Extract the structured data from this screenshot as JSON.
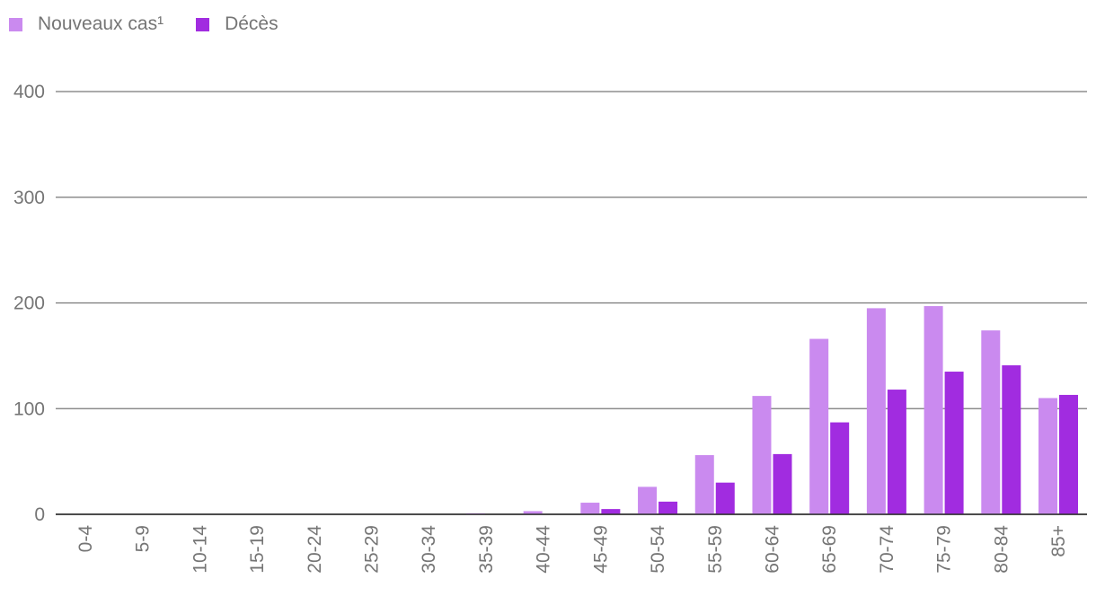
{
  "chart_data": {
    "type": "bar",
    "categories": [
      "0-4",
      "5-9",
      "10-14",
      "15-19",
      "20-24",
      "25-29",
      "30-34",
      "35-39",
      "40-44",
      "45-49",
      "50-54",
      "55-59",
      "60-64",
      "65-69",
      "70-74",
      "75-79",
      "80-84",
      "85+"
    ],
    "series": [
      {
        "name": "Nouveaux cas¹",
        "color": "#ca8aef",
        "values": [
          0,
          0,
          0,
          0,
          0,
          0,
          0,
          1,
          3,
          11,
          26,
          56,
          112,
          166,
          195,
          197,
          174,
          110
        ]
      },
      {
        "name": "Décès",
        "color": "#a12ce0",
        "values": [
          0,
          0,
          0,
          0,
          0,
          0,
          0,
          0,
          0,
          5,
          12,
          30,
          57,
          87,
          118,
          135,
          141,
          113
        ]
      }
    ],
    "yticks": [
      0,
      100,
      200,
      300,
      400
    ],
    "ylim": [
      0,
      400
    ],
    "xlabel": "",
    "ylabel": "",
    "title": "",
    "legend": "top-left",
    "grid": true
  }
}
